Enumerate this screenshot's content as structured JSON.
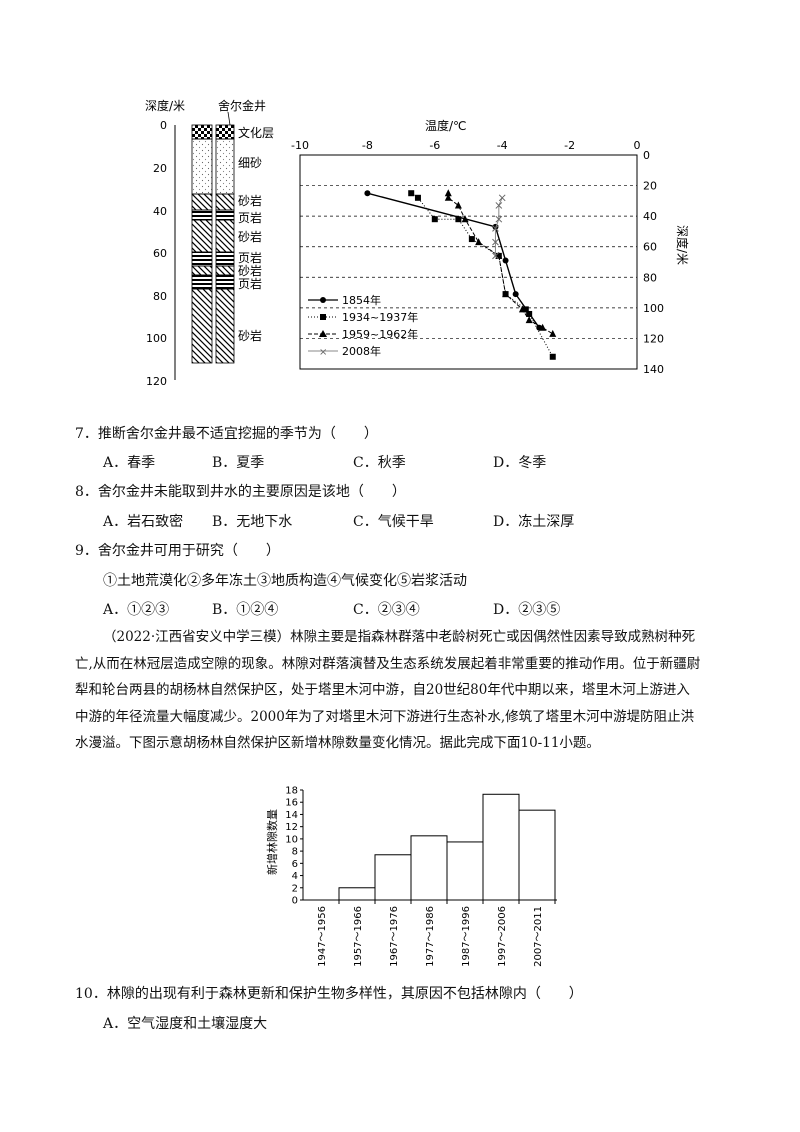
{
  "strata": {
    "depth_label": "深度/米",
    "well_label": "舍尔金井",
    "depth_ticks": [
      "0",
      "20",
      "40",
      "60",
      "80",
      "100",
      "120"
    ],
    "layers": [
      "文化层",
      "细砂",
      "砂岩",
      "页岩",
      "砂岩",
      "页岩",
      "砂岩",
      "页岩",
      "砂岩"
    ]
  },
  "chart_data": [
    {
      "type": "line",
      "x_label": "温度/℃",
      "y_label": "深度/米",
      "x_ticks": [
        "-10",
        "-8",
        "-6",
        "-4",
        "-2",
        "0"
      ],
      "y_ticks": [
        "0",
        "20",
        "40",
        "60",
        "80",
        "100",
        "120",
        "140"
      ],
      "xlim": [
        -10,
        0
      ],
      "ylim": [
        0,
        140
      ],
      "series": [
        {
          "name": "1854年",
          "x": [
            -8,
            -4.2,
            -3.9,
            -3.6,
            -2.9
          ],
          "y": [
            25,
            47,
            69,
            91,
            113
          ]
        },
        {
          "name": "1934~1937年",
          "x": [
            -6.7,
            -6.5,
            -6,
            -5.3,
            -4.9,
            -4.1,
            -3.9,
            -3.3,
            -3.2,
            -2.5
          ],
          "y": [
            25,
            28,
            42,
            42,
            55,
            66,
            91,
            101,
            104,
            132
          ]
        },
        {
          "name": "1959~1962年",
          "x": [
            -5.6,
            -5.6,
            -5.3,
            -5.1,
            -4.7,
            -4.1,
            -3.9,
            -3.4,
            -3.2,
            -2.8,
            -2.5
          ],
          "y": [
            25,
            28,
            33,
            42,
            57,
            66,
            91,
            101,
            108,
            113,
            117
          ]
        },
        {
          "name": "2008年",
          "x": [
            -4,
            -4.1,
            -4.1,
            -4.2,
            -4.2,
            -4.2
          ],
          "y": [
            28,
            33,
            42,
            48,
            57,
            66
          ]
        }
      ]
    },
    {
      "type": "bar",
      "ylabel": "新增林隙数量",
      "categories": [
        "1947～1956",
        "1957～1966",
        "1967～1976",
        "1977～1986",
        "1987～1996",
        "1997～2006",
        "2007～2011"
      ],
      "values": [
        0,
        2,
        7.4,
        10.5,
        9.5,
        17.3,
        14.7
      ],
      "yticks": [
        "0",
        "2",
        "4",
        "6",
        "8",
        "10",
        "12",
        "14",
        "16",
        "18"
      ],
      "ylim": [
        0,
        18
      ]
    }
  ],
  "q7": {
    "stem": "7．推断舍尔金井最不适宜挖掘的季节为（　　）",
    "options": [
      "A．春季",
      "B．夏季",
      "C．秋季",
      "D．冬季"
    ]
  },
  "q8": {
    "stem": "8．舍尔金井未能取到井水的主要原因是该地（　　）",
    "options": [
      "A．岩石致密",
      "B．无地下水",
      "C．气候干旱",
      "D．冻土深厚"
    ]
  },
  "q9": {
    "stem": "9．舍尔金井可用于研究（　　）",
    "items": "①土地荒漠化②多年冻土③地质构造④气候变化⑤岩浆活动",
    "options": [
      "A．①②③",
      "B．①②④",
      "C．②③④",
      "D．②③⑤"
    ]
  },
  "passage": [
    "（2022·江西省安义中学三模）林隙主要是指森林群落中老龄树死亡或因偶然性因素导致成熟树种死",
    "亡,从而在林冠层造成空隙的现象。林隙对群落演替及生态系统发展起着非常重要的推动作用。位于新疆尉",
    "犁和轮台两县的胡杨林自然保护区，处于塔里木河中游，自20世纪80年代中期以来，塔里木河上游进入",
    "中游的年径流量大幅度减少。2000年为了对塔里木河下游进行生态补水,修筑了塔里木河中游堤防阻止洪",
    "水漫溢。下图示意胡杨林自然保护区新增林隙数量变化情况。据此完成下面10-11小题。"
  ],
  "q10": {
    "stem": "10．林隙的出现有利于森林更新和保护生物多样性，其原因不包括林隙内（　　）",
    "options": [
      "A．空气湿度和土壤湿度大"
    ]
  }
}
